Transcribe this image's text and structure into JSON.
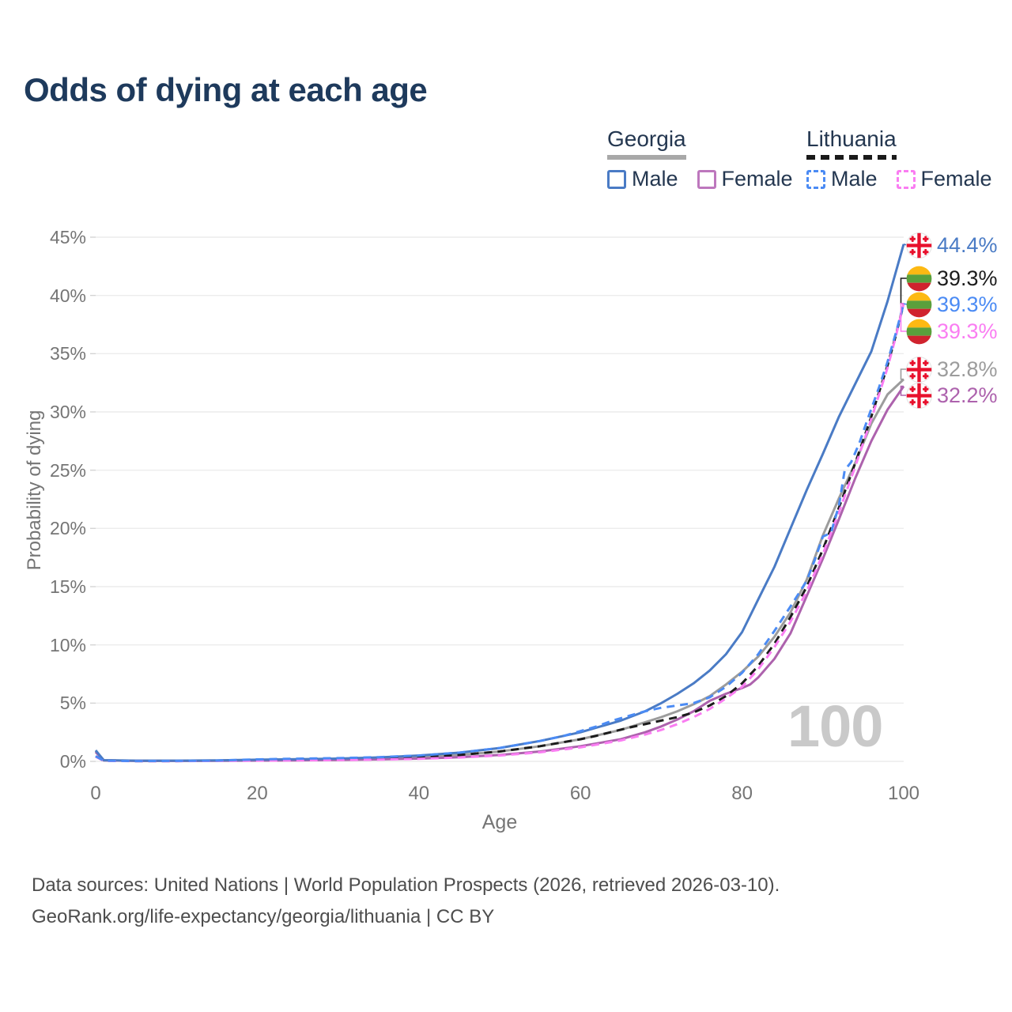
{
  "page": {
    "title": "Odds of dying at each age"
  },
  "legend": {
    "groups": [
      {
        "name": "Georgia",
        "line_style": "solid",
        "underline_color": "#a8a8a8",
        "items": [
          {
            "label": "Male",
            "color": "#4a7bc5",
            "dashed": false
          },
          {
            "label": "Female",
            "color": "#bd77bd",
            "dashed": false
          }
        ]
      },
      {
        "name": "Lithuania",
        "line_style": "dashed",
        "underline_color": "#1a1a1a",
        "items": [
          {
            "label": "Male",
            "color": "#4b8bf4",
            "dashed": true
          },
          {
            "label": "Female",
            "color": "#fa7df2",
            "dashed": true
          }
        ]
      }
    ]
  },
  "chart_data": {
    "type": "line",
    "title": "Odds of dying at each age",
    "xlabel": "Age",
    "ylabel": "Probability of dying",
    "xlim": [
      0,
      100
    ],
    "ylim": [
      0,
      45
    ],
    "xticks": [
      0,
      20,
      40,
      60,
      80,
      100
    ],
    "yticks": [
      0,
      5,
      10,
      15,
      20,
      25,
      30,
      35,
      40,
      45
    ],
    "ytick_suffix": "%",
    "grid": "horizontal-only",
    "legend_position": "top-right",
    "hover_age_watermark": "100",
    "unit": "percent probability of dying at each age",
    "series": [
      {
        "id": "georgia-both",
        "name": "Georgia Both sexes",
        "country": "Georgia",
        "sex": "Both",
        "color": "#9c9c9c",
        "dashed": false,
        "points": [
          [
            0,
            0.88
          ],
          [
            1,
            0.09
          ],
          [
            5,
            0.05
          ],
          [
            10,
            0.05
          ],
          [
            15,
            0.07
          ],
          [
            20,
            0.11
          ],
          [
            25,
            0.14
          ],
          [
            30,
            0.19
          ],
          [
            35,
            0.26
          ],
          [
            40,
            0.37
          ],
          [
            45,
            0.55
          ],
          [
            50,
            0.85
          ],
          [
            55,
            1.3
          ],
          [
            60,
            1.9
          ],
          [
            65,
            2.7
          ],
          [
            70,
            3.8
          ],
          [
            72,
            4.3
          ],
          [
            74,
            4.9
          ],
          [
            76,
            5.6
          ],
          [
            78,
            6.6
          ],
          [
            80,
            7.7
          ],
          [
            82,
            9.0
          ],
          [
            84,
            10.7
          ],
          [
            86,
            12.8
          ],
          [
            88,
            15.6
          ],
          [
            90,
            19.4
          ],
          [
            92,
            22.6
          ],
          [
            94,
            25.6
          ],
          [
            96,
            29.0
          ],
          [
            98,
            31.5
          ],
          [
            100,
            32.8
          ]
        ]
      },
      {
        "id": "georgia-female",
        "name": "Georgia Female",
        "country": "Georgia",
        "sex": "Female",
        "color": "#ad62ad",
        "dashed": false,
        "points": [
          [
            0,
            0.8
          ],
          [
            1,
            0.08
          ],
          [
            5,
            0.04
          ],
          [
            10,
            0.04
          ],
          [
            15,
            0.05
          ],
          [
            20,
            0.07
          ],
          [
            25,
            0.09
          ],
          [
            30,
            0.12
          ],
          [
            35,
            0.17
          ],
          [
            40,
            0.24
          ],
          [
            45,
            0.36
          ],
          [
            50,
            0.55
          ],
          [
            55,
            0.85
          ],
          [
            60,
            1.3
          ],
          [
            65,
            1.9
          ],
          [
            68,
            2.5
          ],
          [
            70,
            3.0
          ],
          [
            72,
            3.6
          ],
          [
            74,
            4.3
          ],
          [
            76,
            5.2
          ],
          [
            78,
            5.8
          ],
          [
            80,
            6.3
          ],
          [
            81,
            6.6
          ],
          [
            82,
            7.2
          ],
          [
            84,
            8.8
          ],
          [
            86,
            11.0
          ],
          [
            88,
            14.2
          ],
          [
            90,
            17.4
          ],
          [
            92,
            20.8
          ],
          [
            94,
            24.3
          ],
          [
            96,
            27.5
          ],
          [
            98,
            30.2
          ],
          [
            100,
            32.2
          ]
        ]
      },
      {
        "id": "georgia-male",
        "name": "Georgia Male",
        "country": "Georgia",
        "sex": "Male",
        "color": "#4a7bc5",
        "dashed": false,
        "points": [
          [
            0,
            0.95
          ],
          [
            1,
            0.1
          ],
          [
            5,
            0.06
          ],
          [
            10,
            0.06
          ],
          [
            15,
            0.09
          ],
          [
            20,
            0.14
          ],
          [
            25,
            0.18
          ],
          [
            30,
            0.24
          ],
          [
            35,
            0.34
          ],
          [
            40,
            0.5
          ],
          [
            45,
            0.75
          ],
          [
            50,
            1.15
          ],
          [
            55,
            1.75
          ],
          [
            60,
            2.5
          ],
          [
            65,
            3.5
          ],
          [
            68,
            4.3
          ],
          [
            70,
            5.0
          ],
          [
            72,
            5.8
          ],
          [
            74,
            6.7
          ],
          [
            76,
            7.8
          ],
          [
            78,
            9.2
          ],
          [
            80,
            11.1
          ],
          [
            82,
            13.9
          ],
          [
            84,
            16.7
          ],
          [
            86,
            20.0
          ],
          [
            88,
            23.3
          ],
          [
            90,
            26.4
          ],
          [
            92,
            29.6
          ],
          [
            94,
            32.4
          ],
          [
            96,
            35.2
          ],
          [
            98,
            39.5
          ],
          [
            100,
            44.4
          ]
        ]
      },
      {
        "id": "lithuania-both",
        "name": "Lithuania Both sexes",
        "country": "Lithuania",
        "sex": "Both",
        "color": "#1c1c1c",
        "dashed": true,
        "points": [
          [
            0,
            0.43
          ],
          [
            1,
            0.06
          ],
          [
            5,
            0.03
          ],
          [
            10,
            0.03
          ],
          [
            15,
            0.06
          ],
          [
            20,
            0.12
          ],
          [
            25,
            0.16
          ],
          [
            30,
            0.2
          ],
          [
            35,
            0.27
          ],
          [
            40,
            0.37
          ],
          [
            45,
            0.55
          ],
          [
            50,
            0.85
          ],
          [
            55,
            1.3
          ],
          [
            60,
            1.9
          ],
          [
            62,
            2.2
          ],
          [
            64,
            2.55
          ],
          [
            66,
            2.9
          ],
          [
            68,
            3.2
          ],
          [
            70,
            3.5
          ],
          [
            72,
            3.8
          ],
          [
            74,
            4.2
          ],
          [
            76,
            4.8
          ],
          [
            78,
            5.6
          ],
          [
            80,
            6.7
          ],
          [
            82,
            8.2
          ],
          [
            84,
            10.1
          ],
          [
            86,
            12.4
          ],
          [
            88,
            15.0
          ],
          [
            90,
            18.2
          ],
          [
            92,
            21.8
          ],
          [
            94,
            25.6
          ],
          [
            96,
            29.6
          ],
          [
            98,
            34.0
          ],
          [
            99,
            36.5
          ],
          [
            100,
            39.3
          ]
        ]
      },
      {
        "id": "lithuania-female",
        "name": "Lithuania Female",
        "country": "Lithuania",
        "sex": "Female",
        "color": "#fa7df2",
        "dashed": true,
        "points": [
          [
            0,
            0.4
          ],
          [
            1,
            0.05
          ],
          [
            5,
            0.02
          ],
          [
            10,
            0.02
          ],
          [
            15,
            0.04
          ],
          [
            20,
            0.06
          ],
          [
            25,
            0.08
          ],
          [
            30,
            0.11
          ],
          [
            35,
            0.15
          ],
          [
            40,
            0.22
          ],
          [
            45,
            0.33
          ],
          [
            50,
            0.5
          ],
          [
            55,
            0.78
          ],
          [
            60,
            1.2
          ],
          [
            65,
            1.8
          ],
          [
            68,
            2.3
          ],
          [
            70,
            2.7
          ],
          [
            72,
            3.2
          ],
          [
            74,
            3.8
          ],
          [
            76,
            4.5
          ],
          [
            78,
            5.4
          ],
          [
            80,
            6.4
          ],
          [
            82,
            7.9
          ],
          [
            84,
            9.8
          ],
          [
            86,
            12.0
          ],
          [
            88,
            14.6
          ],
          [
            90,
            17.8
          ],
          [
            92,
            21.4
          ],
          [
            94,
            25.3
          ],
          [
            96,
            29.4
          ],
          [
            98,
            33.8
          ],
          [
            99,
            36.4
          ],
          [
            100,
            39.3
          ]
        ]
      },
      {
        "id": "lithuania-male",
        "name": "Lithuania Male",
        "country": "Lithuania",
        "sex": "Male",
        "color": "#4b8bf4",
        "dashed": true,
        "points": [
          [
            0,
            0.45
          ],
          [
            1,
            0.06
          ],
          [
            5,
            0.03
          ],
          [
            10,
            0.04
          ],
          [
            15,
            0.07
          ],
          [
            20,
            0.17
          ],
          [
            25,
            0.23
          ],
          [
            30,
            0.28
          ],
          [
            35,
            0.36
          ],
          [
            40,
            0.5
          ],
          [
            45,
            0.75
          ],
          [
            50,
            1.15
          ],
          [
            55,
            1.75
          ],
          [
            58,
            2.2
          ],
          [
            60,
            2.6
          ],
          [
            62,
            3.0
          ],
          [
            64,
            3.5
          ],
          [
            66,
            3.9
          ],
          [
            68,
            4.3
          ],
          [
            70,
            4.6
          ],
          [
            72,
            4.8
          ],
          [
            74,
            5.0
          ],
          [
            76,
            5.5
          ],
          [
            78,
            6.4
          ],
          [
            80,
            7.6
          ],
          [
            82,
            9.2
          ],
          [
            84,
            11.2
          ],
          [
            86,
            13.3
          ],
          [
            88,
            15.5
          ],
          [
            89,
            17.3
          ],
          [
            90,
            19.3
          ],
          [
            91,
            19.6
          ],
          [
            92,
            22.0
          ],
          [
            92.7,
            25.0
          ],
          [
            93.5,
            25.7
          ],
          [
            94.5,
            27.3
          ],
          [
            95.5,
            29.3
          ],
          [
            97,
            32.2
          ],
          [
            98,
            34.3
          ],
          [
            99,
            36.7
          ],
          [
            100,
            39.3
          ]
        ]
      }
    ],
    "end_labels": [
      {
        "text": "44.4%",
        "value": 44.4,
        "flag": "georgia",
        "color": "#4a7bc5",
        "series": "Georgia Male"
      },
      {
        "text": "39.3%",
        "value": 39.3,
        "flag": "lithuania",
        "color": "#1c1c1c",
        "series": "Lithuania Both sexes"
      },
      {
        "text": "39.3%",
        "value": 39.3,
        "flag": "lithuania",
        "color": "#4b8bf4",
        "series": "Lithuania Male"
      },
      {
        "text": "39.3%",
        "value": 39.3,
        "flag": "lithuania",
        "color": "#fa7df2",
        "series": "Lithuania Female"
      },
      {
        "text": "32.8%",
        "value": 32.8,
        "flag": "georgia",
        "color": "#9c9c9c",
        "series": "Georgia Both sexes"
      },
      {
        "text": "32.2%",
        "value": 32.2,
        "flag": "georgia",
        "color": "#ad62ad",
        "series": "Georgia Female"
      }
    ]
  },
  "footer": {
    "line1": "Data sources: United Nations | World Population Prospects (2026, retrieved 2026-03-10).",
    "line2": "GeoRank.org/life-expectancy/georgia/lithuania | CC BY"
  }
}
